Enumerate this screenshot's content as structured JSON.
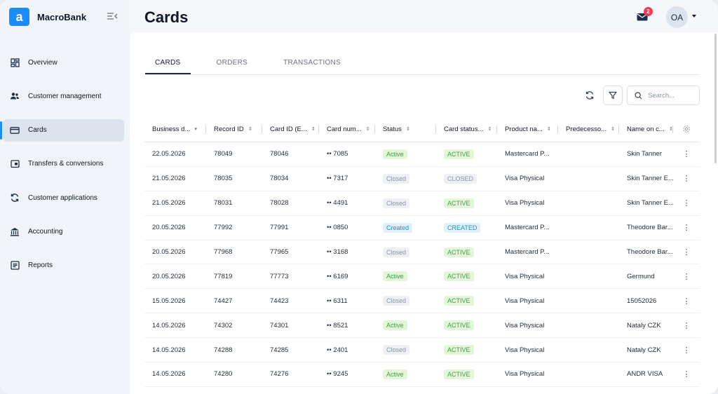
{
  "brand": {
    "logo": "a",
    "name": "MacroBank"
  },
  "nav": [
    {
      "label": "Overview",
      "icon": "dashboard-icon"
    },
    {
      "label": "Customer management",
      "icon": "users-icon"
    },
    {
      "label": "Cards",
      "icon": "card-icon",
      "active": true
    },
    {
      "label": "Transfers & conversions",
      "icon": "transfer-icon"
    },
    {
      "label": "Customer applications",
      "icon": "sync-icon"
    },
    {
      "label": "Accounting",
      "icon": "bank-icon"
    },
    {
      "label": "Reports",
      "icon": "report-icon"
    }
  ],
  "header": {
    "title": "Cards",
    "mail_badge": "2",
    "avatar_initials": "OA"
  },
  "tabs": [
    {
      "label": "CARDS",
      "active": true
    },
    {
      "label": "ORDERS"
    },
    {
      "label": "TRANSACTIONS"
    }
  ],
  "search": {
    "placeholder": "Search..."
  },
  "table": {
    "columns": [
      "Business d...",
      "Record ID",
      "Card ID (E...",
      "Card num...",
      "Status",
      "Card status...",
      "Product na...",
      "Predecesso...",
      "Name on c..."
    ],
    "rows": [
      [
        "22.05.2026",
        "78049",
        "78046",
        "•• 7085",
        "Active",
        "ACTIVE",
        "Mastercard P...",
        "",
        "Skin Tanner"
      ],
      [
        "21.05.2026",
        "78035",
        "78034",
        "•• 7317",
        "Closed",
        "CLOSED",
        "Visa Physical",
        "",
        "Skin Tanner E..."
      ],
      [
        "21.05.2026",
        "78031",
        "78028",
        "•• 4491",
        "Closed",
        "ACTIVE",
        "Visa Physical",
        "",
        "Skin Tanner E..."
      ],
      [
        "20.05.2026",
        "77992",
        "77991",
        "•• 0850",
        "Created",
        "CREATED",
        "Mastercard P...",
        "",
        "Theodore Bar..."
      ],
      [
        "20.05.2026",
        "77968",
        "77965",
        "•• 3168",
        "Closed",
        "ACTIVE",
        "Mastercard P...",
        "",
        "Theodore Bar..."
      ],
      [
        "20.05.2026",
        "77819",
        "77773",
        "•• 6169",
        "Active",
        "ACTIVE",
        "Visa Physical",
        "",
        "Germund"
      ],
      [
        "15.05.2026",
        "74427",
        "74423",
        "•• 6311",
        "Closed",
        "ACTIVE",
        "Visa Physical",
        "",
        "15052026"
      ],
      [
        "14.05.2026",
        "74302",
        "74301",
        "•• 8521",
        "Active",
        "ACTIVE",
        "Visa Physical",
        "",
        "Nataly CZK"
      ],
      [
        "14.05.2026",
        "74288",
        "74285",
        "•• 2401",
        "Closed",
        "ACTIVE",
        "Visa Physical",
        "",
        "Nataly CZK"
      ],
      [
        "14.05.2026",
        "74280",
        "74276",
        "•• 9245",
        "Active",
        "ACTIVE",
        "Visa Physical",
        "",
        "ANDR VISA"
      ]
    ]
  },
  "colors": {
    "accent": "#1a8cff",
    "active_green": "#3aa14a",
    "created_blue": "#1e90c8",
    "closed_grey": "#8a94a3",
    "badge_red": "#ef3b56"
  }
}
